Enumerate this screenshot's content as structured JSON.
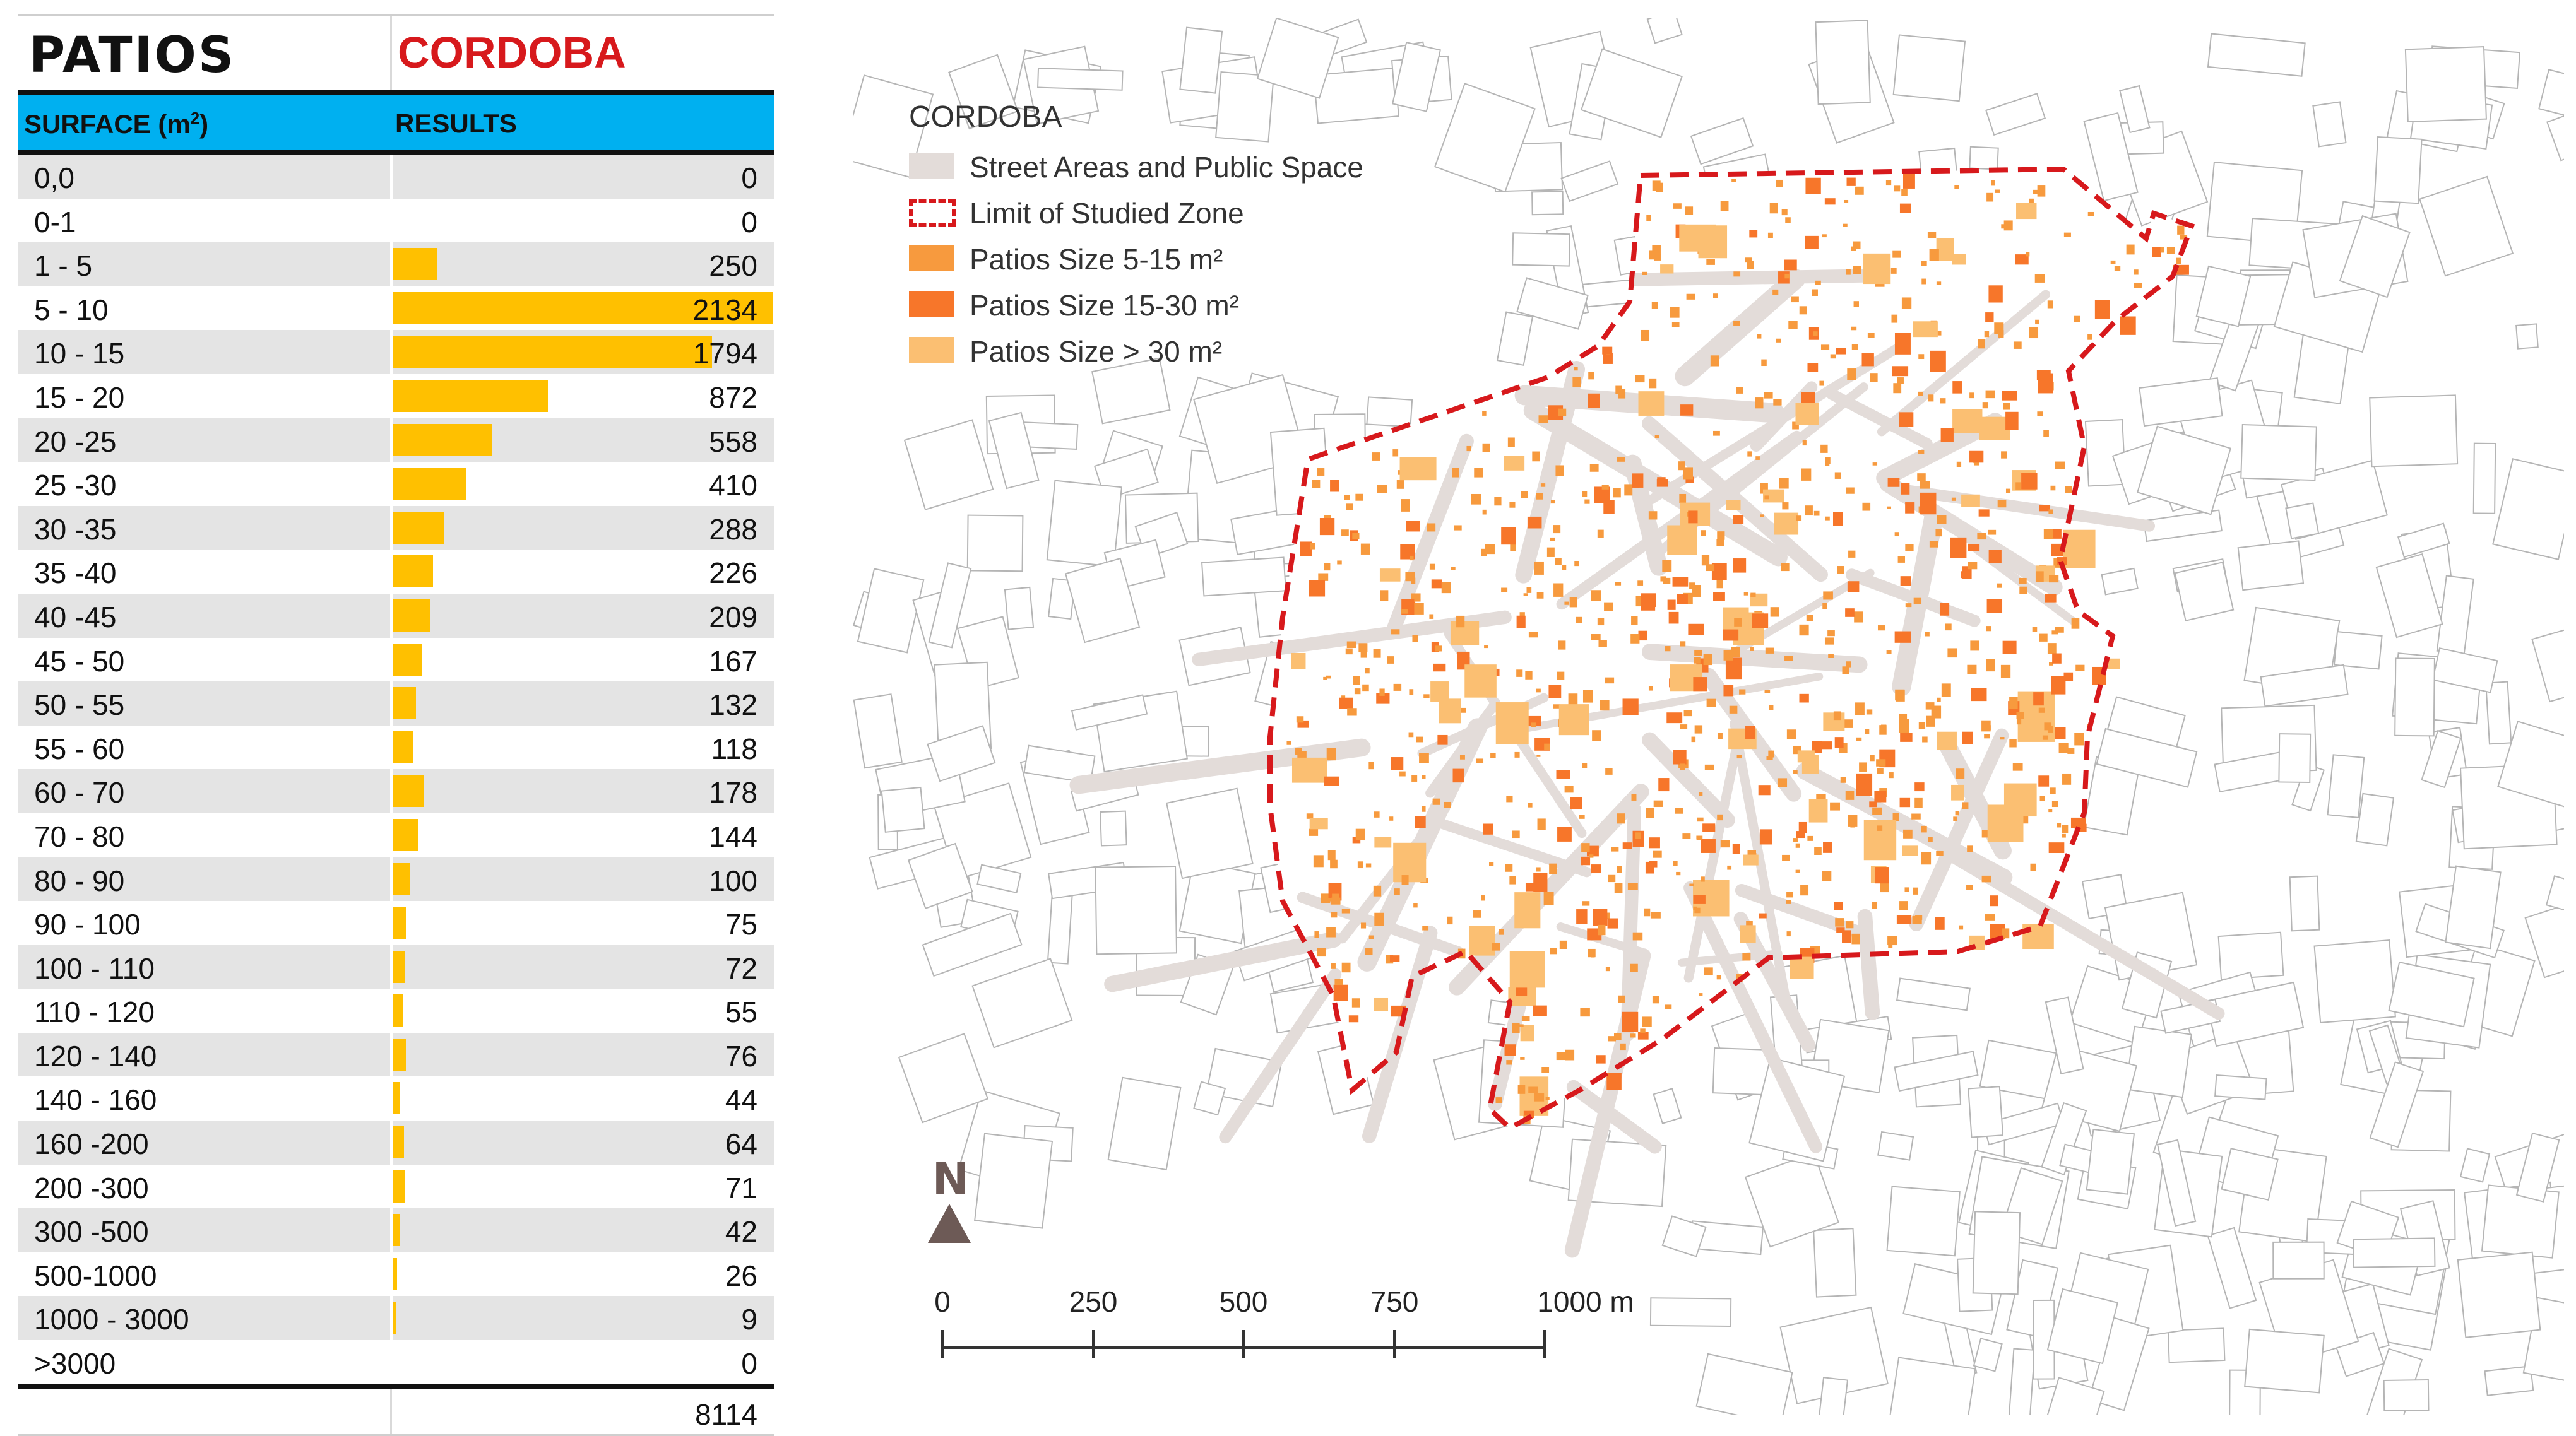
{
  "table": {
    "title_left": "PATIOS",
    "title_right": "CORDOBA",
    "header_left": "SURFACE (m",
    "header_left_sup": "2",
    "header_left_close": ")",
    "header_right": "RESULTS",
    "max_value": 2134,
    "rows": [
      {
        "label": "0,0",
        "value": "0",
        "n": 0
      },
      {
        "label": "0-1",
        "value": "0",
        "n": 0
      },
      {
        "label": "1 - 5",
        "value": "250",
        "n": 250
      },
      {
        "label": "5 - 10",
        "value": "2134",
        "n": 2134
      },
      {
        "label": "10 - 15",
        "value": "1794",
        "n": 1794
      },
      {
        "label": "15 - 20",
        "value": "872",
        "n": 872
      },
      {
        "label": "20 -25",
        "value": "558",
        "n": 558
      },
      {
        "label": "25 -30",
        "value": "410",
        "n": 410
      },
      {
        "label": "30 -35",
        "value": "288",
        "n": 288
      },
      {
        "label": "35 -40",
        "value": "226",
        "n": 226
      },
      {
        "label": "40 -45",
        "value": "209",
        "n": 209
      },
      {
        "label": "45 - 50",
        "value": "167",
        "n": 167
      },
      {
        "label": "50 - 55",
        "value": "132",
        "n": 132
      },
      {
        "label": "55 - 60",
        "value": "118",
        "n": 118
      },
      {
        "label": "60 - 70",
        "value": "178",
        "n": 178
      },
      {
        "label": "70 - 80",
        "value": "144",
        "n": 144
      },
      {
        "label": "80 - 90",
        "value": "100",
        "n": 100
      },
      {
        "label": "90 - 100",
        "value": "75",
        "n": 75
      },
      {
        "label": "100 - 110",
        "value": "72",
        "n": 72
      },
      {
        "label": "110 - 120",
        "value": "55",
        "n": 55
      },
      {
        "label": "120 - 140",
        "value": "76",
        "n": 76
      },
      {
        "label": "140 - 160",
        "value": "44",
        "n": 44
      },
      {
        "label": "160 -200",
        "value": "64",
        "n": 64
      },
      {
        "label": "200 -300",
        "value": "71",
        "n": 71
      },
      {
        "label": "300 -500",
        "value": "42",
        "n": 42
      },
      {
        "label": "500-1000",
        "value": "26",
        "n": 26
      },
      {
        "label": "1000 - 3000",
        "value": "9",
        "n": 9
      },
      {
        "label": ">3000",
        "value": "0",
        "n": 0
      }
    ],
    "total": "8114"
  },
  "map": {
    "legend_title": "CORDOBA",
    "legend": [
      {
        "label": "Street Areas and Public Space",
        "color": "#e3dcd9"
      },
      {
        "label": "Limit of Studied Zone",
        "color": "#d7191c"
      },
      {
        "label": "Patios Size 5-15 m²",
        "color": "#f79a3e"
      },
      {
        "label": "Patios Size 15-30 m²",
        "color": "#f7762a"
      },
      {
        "label": "Patios Size > 30 m²",
        "color": "#fbbf72"
      }
    ],
    "north_label": "N",
    "north_icon": "north-arrow-icon",
    "scale_labels": [
      "0",
      "250",
      "500",
      "750",
      "1000 m"
    ]
  }
}
